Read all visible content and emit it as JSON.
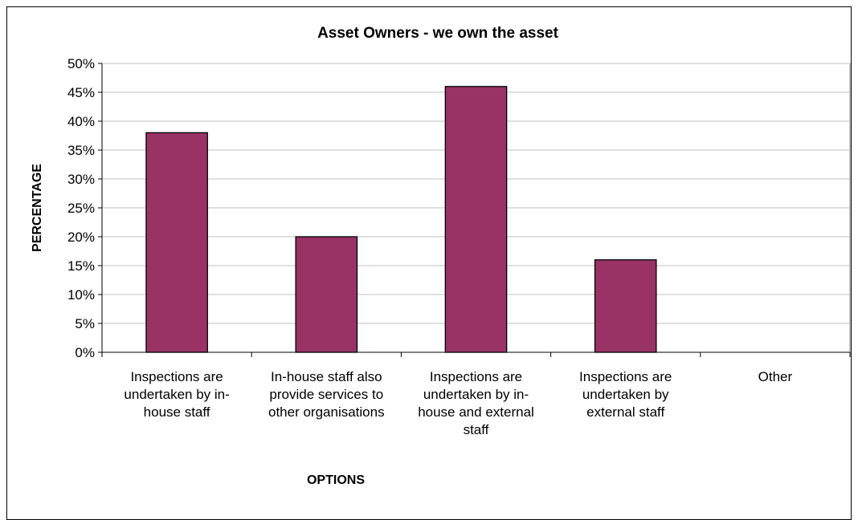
{
  "chart_data": {
    "type": "bar",
    "title": "Asset Owners - we own the asset",
    "xlabel": "OPTIONS",
    "ylabel": "PERCENTAGE",
    "ylim": [
      0,
      0.5
    ],
    "yticks": [
      "0%",
      "5%",
      "10%",
      "15%",
      "20%",
      "25%",
      "30%",
      "35%",
      "40%",
      "45%",
      "50%"
    ],
    "categories": [
      [
        "Inspections are",
        "undertaken by in-",
        "house staff"
      ],
      [
        "In-house staff also",
        "provide services to",
        "other organisations"
      ],
      [
        "Inspections are",
        "undertaken by in-",
        "house and external",
        "staff"
      ],
      [
        "Inspections are",
        "undertaken by",
        "external staff"
      ],
      [
        "Other"
      ]
    ],
    "values": [
      0.38,
      0.2,
      0.46,
      0.16,
      0
    ],
    "grid": true,
    "legend": "none",
    "bar_color": "#993366",
    "plot_background": "#ffffff",
    "grid_color": "#c0c0c0"
  }
}
